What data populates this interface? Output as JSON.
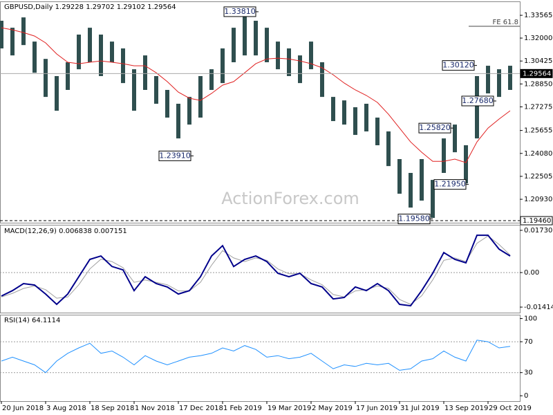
{
  "chart_data": [
    {
      "type": "range-bar",
      "title": "GBPUSD,Daily  1.29228 1.29702 1.29102 1.29564",
      "x": [
        0,
        8,
        16,
        24,
        32,
        40,
        48,
        56,
        64,
        72,
        80,
        88,
        96,
        104,
        112,
        120,
        128,
        136,
        144,
        152,
        160,
        168,
        176,
        184,
        192,
        200,
        208,
        216,
        224,
        232,
        240,
        248,
        256,
        264,
        272,
        280,
        288,
        296,
        304,
        312,
        320,
        328,
        336,
        344,
        352,
        360,
        368
      ],
      "xlim": [
        0,
        375
      ],
      "high": [
        1.3319,
        1.3271,
        1.3342,
        1.3176,
        1.3057,
        1.2939,
        1.3034,
        1.3224,
        1.3271,
        1.3224,
        1.3176,
        1.3129,
        1.2986,
        1.3081,
        1.2939,
        1.2844,
        1.2749,
        1.2796,
        1.2939,
        1.2986,
        1.3129,
        1.3271,
        1.3366,
        1.3319,
        1.3271,
        1.3176,
        1.3129,
        1.3081,
        1.3176,
        1.3034,
        1.2796,
        1.2772,
        1.2725,
        1.2749,
        1.2654,
        1.2559,
        1.2369,
        1.2274,
        1.2369,
        1.2226,
        1.2511,
        1.2606,
        1.2464,
        1.2939,
        1.301,
        1.2986,
        1.301
      ],
      "low": [
        1.3129,
        1.3081,
        1.3152,
        1.2962,
        1.2796,
        1.2701,
        1.2844,
        1.2986,
        1.3034,
        1.2939,
        1.3034,
        1.2891,
        1.2701,
        1.2844,
        1.2749,
        1.2654,
        1.2511,
        1.2606,
        1.2654,
        1.2844,
        1.2891,
        1.3034,
        1.3081,
        1.3081,
        1.3034,
        1.2986,
        1.2939,
        1.2891,
        1.2986,
        1.2796,
        1.263,
        1.2606,
        1.2535,
        1.2559,
        1.2464,
        1.2321,
        1.2131,
        1.2036,
        1.2084,
        1.1965,
        1.2274,
        1.2416,
        1.2202,
        1.2511,
        1.282,
        1.2796,
        1.2844
      ],
      "ma": {
        "color": "#e02020",
        "values": [
          1.3271,
          1.3257,
          1.3238,
          1.3214,
          1.3167,
          1.3091,
          1.3034,
          1.3024,
          1.3034,
          1.3043,
          1.3034,
          1.3024,
          1.301,
          1.301,
          1.2962,
          1.2901,
          1.2829,
          1.2787,
          1.2772,
          1.282,
          1.2877,
          1.2901,
          1.2962,
          1.3024,
          1.3057,
          1.3062,
          1.3057,
          1.3043,
          1.3024,
          1.2996,
          1.2948,
          1.2891,
          1.2844,
          1.2806,
          1.2758,
          1.2677,
          1.2582,
          1.2487,
          1.2416,
          1.2354,
          1.2354,
          1.2369,
          1.2345,
          1.2487,
          1.2582,
          1.2644,
          1.2701
        ]
      },
      "color": "#2f4f4f",
      "ylim": [
        1.1932,
        1.3452
      ],
      "yticks": [
        1.33565,
        {
          "value": 1.32,
          "label": "1.32000"
        },
        1.30425,
        {
          "value": 1.2885,
          "label": "1.28850"
        },
        1.27275,
        1.25655,
        {
          "value": 1.2408,
          "label": "1.24080"
        },
        1.22505,
        {
          "value": 1.2093,
          "label": "1.20930"
        }
      ],
      "levels": [
        {
          "value": 1.29564,
          "style": "solid"
        },
        {
          "value": 1.1946,
          "label": "1.19460",
          "style": "dashed"
        }
      ],
      "fe": {
        "label": "FE 61.8",
        "value": 1.3281,
        "x": 338
      },
      "annotations": [
        {
          "label": "1.33810",
          "value": 1.3381,
          "x": 186
        },
        {
          "label": "1.23910",
          "value": 1.2391,
          "x": 139
        },
        {
          "label": "1.30120",
          "value": 1.3012,
          "x": 344
        },
        {
          "label": "1.27680",
          "value": 1.2768,
          "x": 358
        },
        {
          "label": "1.25820",
          "value": 1.2582,
          "x": 327
        },
        {
          "label": "1.21950",
          "value": 1.2195,
          "x": 338
        },
        {
          "label": "1.19580",
          "value": 1.1958,
          "x": 312
        }
      ],
      "watermark": "ActionForex.com"
    },
    {
      "type": "line",
      "title": "MACD(12,26,9) 0.006838 0.007151",
      "series": [
        {
          "name": "MACD",
          "color": "#00008b",
          "width": 2,
          "values": [
            -0.0096,
            -0.0074,
            -0.0045,
            -0.0051,
            -0.0088,
            -0.013,
            -0.0088,
            -0.0017,
            0.0054,
            0.0068,
            0.0025,
            0.0011,
            -0.0074,
            -0.0017,
            -0.0045,
            -0.0059,
            -0.0088,
            -0.0074,
            -0.0017,
            0.0068,
            0.011,
            0.0025,
            0.0054,
            0.0068,
            0.0045,
            -0.0003,
            -0.0017,
            -0.0003,
            -0.0045,
            -0.0059,
            -0.0108,
            -0.0102,
            -0.0059,
            -0.0074,
            -0.0045,
            -0.0074,
            -0.013,
            -0.0136,
            -0.0074,
            -0.0003,
            0.0082,
            0.0054,
            0.004,
            0.0153,
            0.0153,
            0.0096,
            0.0068
          ]
        },
        {
          "name": "Signal",
          "color": "#a0a0a0",
          "width": 1,
          "values": [
            -0.01,
            -0.0085,
            -0.0065,
            -0.0055,
            -0.007,
            -0.0105,
            -0.01,
            -0.005,
            0.0015,
            0.0055,
            0.0045,
            0.002,
            -0.004,
            -0.003,
            -0.004,
            -0.005,
            -0.0075,
            -0.0075,
            -0.004,
            0.003,
            0.009,
            0.006,
            0.0045,
            0.006,
            0.005,
            0.0015,
            -0.0005,
            -0.0005,
            -0.003,
            -0.005,
            -0.009,
            -0.01,
            -0.0075,
            -0.007,
            -0.0055,
            -0.0065,
            -0.011,
            -0.013,
            -0.0095,
            -0.003,
            0.005,
            0.006,
            0.0045,
            0.012,
            0.015,
            0.0115,
            0.0072
          ]
        }
      ],
      "ylim": [
        -0.01641,
        0.01957
      ],
      "yticks": [
        0.017302,
        {
          "value": 0,
          "label": "0.00"
        },
        -0.014148
      ],
      "levels": [
        0
      ]
    },
    {
      "type": "line",
      "title": "RSI(14) 64.1114",
      "series": [
        {
          "name": "RSI",
          "color": "#1e90ff",
          "width": 1,
          "values": [
            45,
            50,
            45,
            40,
            30,
            45,
            55,
            62,
            68,
            55,
            58,
            50,
            40,
            52,
            45,
            40,
            45,
            50,
            52,
            55,
            62,
            58,
            65,
            60,
            50,
            52,
            48,
            50,
            55,
            45,
            35,
            40,
            38,
            42,
            40,
            42,
            33,
            35,
            45,
            48,
            58,
            50,
            45,
            72,
            70,
            62,
            64
          ]
        }
      ],
      "ylim": [
        -7,
        105
      ],
      "yticks": [
        100,
        70,
        30,
        0
      ],
      "levels": [
        70,
        30
      ],
      "xticks": [
        {
          "value": 0,
          "label": "20 Jun 2018"
        },
        {
          "value": 32,
          "label": "3 Aug 2018"
        },
        {
          "value": 64,
          "label": "18 Sep 2018"
        },
        {
          "value": 96,
          "label": "1 Nov 2018"
        },
        {
          "value": 128,
          "label": "17 Dec 2018"
        },
        {
          "value": 160,
          "label": "1 Feb 2019"
        },
        {
          "value": 192,
          "label": "19 Mar 2019"
        },
        {
          "value": 224,
          "label": "2 May 2019"
        },
        {
          "value": 256,
          "label": "17 Jun 2019"
        },
        {
          "value": 288,
          "label": "31 Jul 2019"
        },
        {
          "value": 320,
          "label": "13 Sep 2019"
        },
        {
          "value": 352,
          "label": "29 Oct 2019"
        }
      ]
    }
  ]
}
